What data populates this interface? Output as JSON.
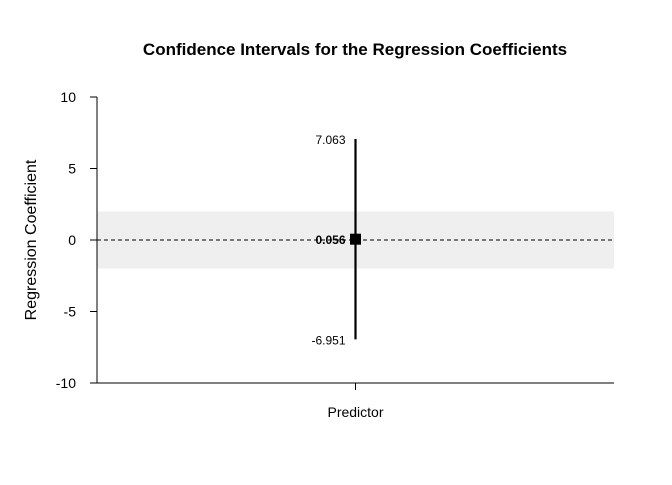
{
  "chart_data": {
    "type": "interval",
    "title": "Confidence Intervals for the Regression Coefficients",
    "xlabel": "",
    "ylabel": "Regression Coefficient",
    "categories": [
      "Predictor"
    ],
    "estimates": [
      0.056
    ],
    "lower": [
      -6.951
    ],
    "upper": [
      7.063
    ],
    "estimate_labels": [
      "0.056"
    ],
    "lower_labels": [
      "-6.951"
    ],
    "upper_labels": [
      "7.063"
    ],
    "ylim": [
      -10,
      10
    ],
    "yticks": [
      -10,
      -5,
      0,
      5,
      10
    ],
    "ytick_labels": [
      "-10",
      "-5",
      "0",
      "5",
      "10"
    ],
    "reference_line": 0,
    "shaded_band": [
      -2,
      2
    ],
    "colors": {
      "band": "#efefef",
      "interval": "#000000",
      "reference_line": "#000000"
    },
    "grid": false,
    "legend": "none"
  }
}
